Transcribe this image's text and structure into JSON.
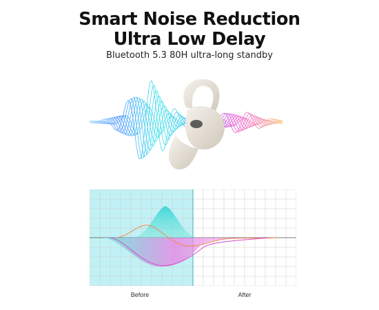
{
  "headline": {
    "line1": "Smart Noise Reduction",
    "line2": "Ultra Low Delay",
    "subtitle": "Bluetooth 5.3 80H ultra-long standby"
  },
  "comparison": {
    "before_label": "Before",
    "after_label": "After"
  },
  "colors": {
    "before_zone": "#8fe6ec",
    "divider": "#3aa8b8",
    "wave_cyan": "#32d6dd",
    "wave_magenta": "#e86bd9",
    "wave_orange": "#f08a4b",
    "earbud": "#ece6dc"
  }
}
